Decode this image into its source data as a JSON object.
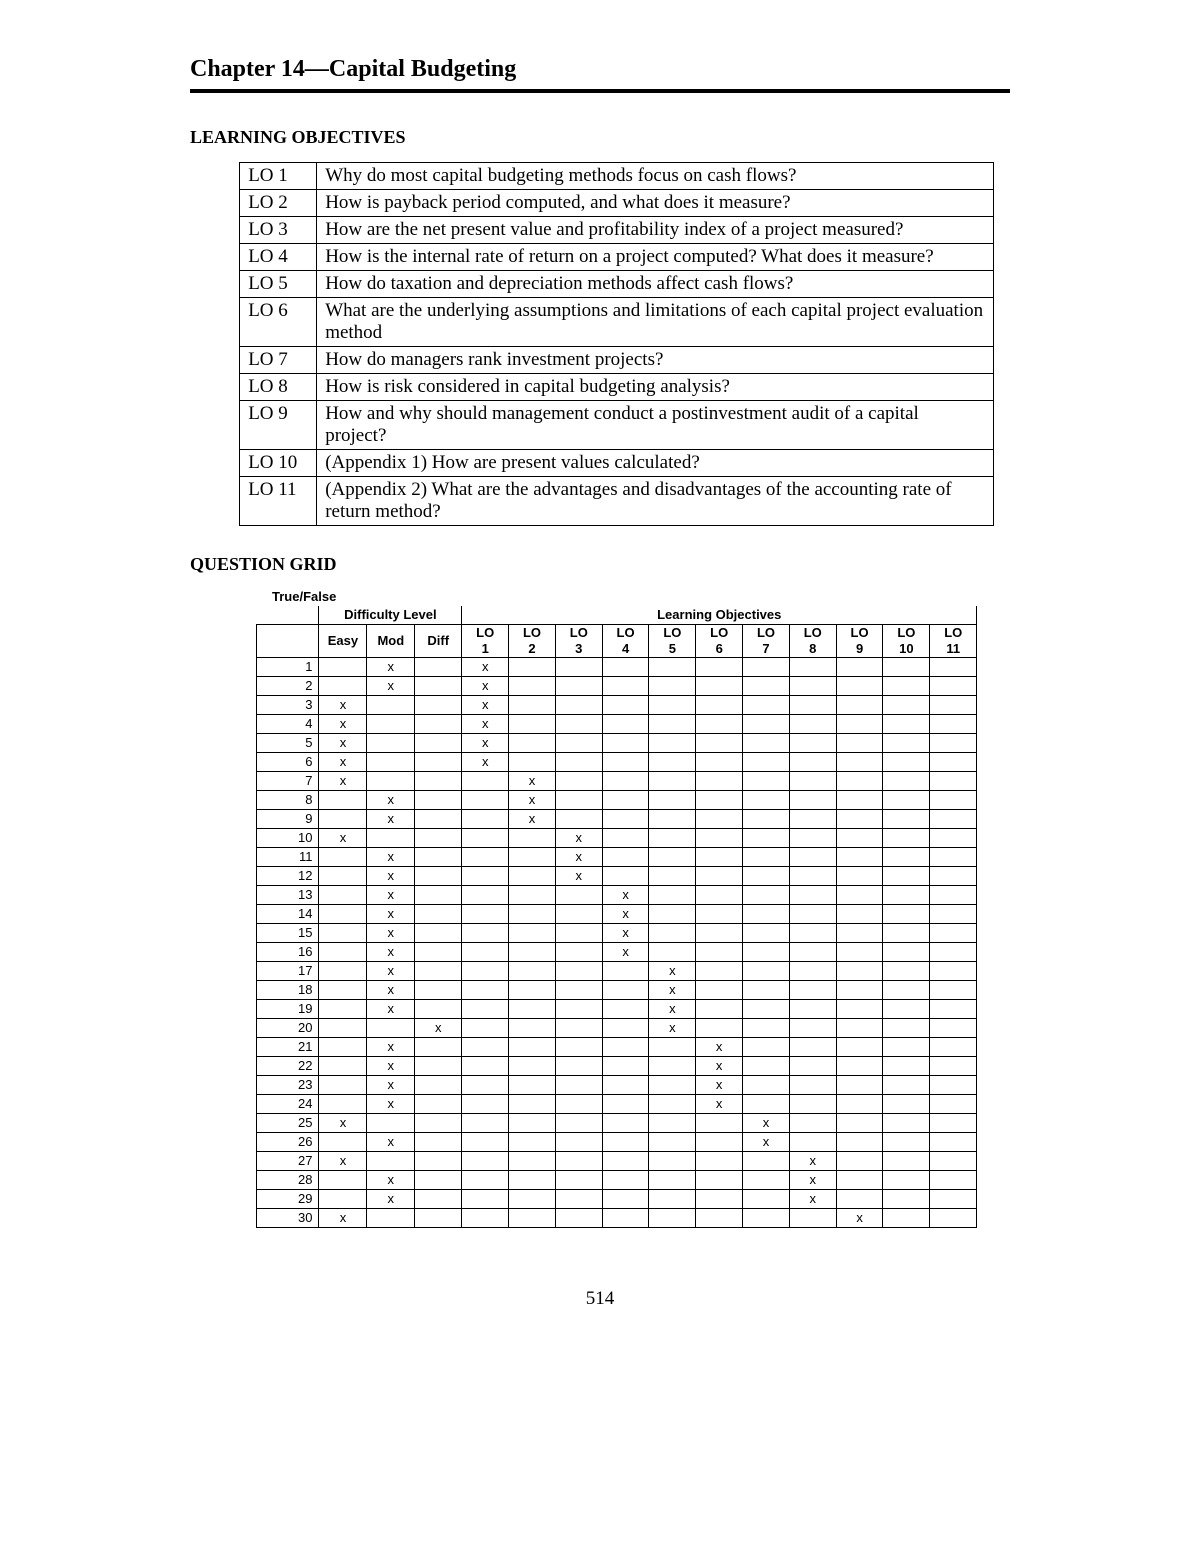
{
  "chapter_title": "Chapter 14—Capital Budgeting",
  "sections": {
    "learning_objectives_heading": "LEARNING OBJECTIVES",
    "question_grid_heading": "QUESTION GRID"
  },
  "learning_objectives": [
    {
      "code": "LO  1",
      "text": "Why do most capital budgeting methods focus on cash flows?"
    },
    {
      "code": "LO  2",
      "text": "How is payback period computed, and what does it measure?"
    },
    {
      "code": "LO  3",
      "text": "How are the net present value and profitability index of a project measured?"
    },
    {
      "code": "LO  4",
      "text": "How is the internal rate of return on a project computed? What does it measure?"
    },
    {
      "code": "LO  5",
      "text": "How do taxation and depreciation methods affect cash flows?"
    },
    {
      "code": "LO  6",
      "text": "What are the underlying assumptions and limitations of each capital project evaluation method"
    },
    {
      "code": "LO  7",
      "text": "How do managers rank investment projects?"
    },
    {
      "code": "LO  8",
      "text": "How is risk considered in capital budgeting analysis?"
    },
    {
      "code": "LO  9",
      "text": "How and why should management conduct a postinvestment audit of a capital project?"
    },
    {
      "code": "LO 10",
      "text": "(Appendix 1) How are present values calculated?"
    },
    {
      "code": "LO 11",
      "text": "(Appendix 2) What are the advantages and disadvantages of the accounting rate of return method?"
    }
  ],
  "question_grid": {
    "label": "True/False",
    "group_headers": {
      "difficulty": "Difficulty Level",
      "objectives": "Learning Objectives"
    },
    "difficulty_cols": [
      "Easy",
      "Mod",
      "Diff"
    ],
    "lo_cols": [
      "LO 1",
      "LO 2",
      "LO 3",
      "LO 4",
      "LO 5",
      "LO 6",
      "LO 7",
      "LO 8",
      "LO 9",
      "LO 10",
      "LO 11"
    ],
    "mark": "x",
    "rows": [
      {
        "n": 1,
        "easy": "",
        "mod": "x",
        "diff": "",
        "lo": [
          "x",
          "",
          "",
          "",
          "",
          "",
          "",
          "",
          "",
          "",
          ""
        ]
      },
      {
        "n": 2,
        "easy": "",
        "mod": "x",
        "diff": "",
        "lo": [
          "x",
          "",
          "",
          "",
          "",
          "",
          "",
          "",
          "",
          "",
          ""
        ]
      },
      {
        "n": 3,
        "easy": "x",
        "mod": "",
        "diff": "",
        "lo": [
          "x",
          "",
          "",
          "",
          "",
          "",
          "",
          "",
          "",
          "",
          ""
        ]
      },
      {
        "n": 4,
        "easy": "x",
        "mod": "",
        "diff": "",
        "lo": [
          "x",
          "",
          "",
          "",
          "",
          "",
          "",
          "",
          "",
          "",
          ""
        ]
      },
      {
        "n": 5,
        "easy": "x",
        "mod": "",
        "diff": "",
        "lo": [
          "x",
          "",
          "",
          "",
          "",
          "",
          "",
          "",
          "",
          "",
          ""
        ]
      },
      {
        "n": 6,
        "easy": "x",
        "mod": "",
        "diff": "",
        "lo": [
          "x",
          "",
          "",
          "",
          "",
          "",
          "",
          "",
          "",
          "",
          ""
        ]
      },
      {
        "n": 7,
        "easy": "x",
        "mod": "",
        "diff": "",
        "lo": [
          "",
          "x",
          "",
          "",
          "",
          "",
          "",
          "",
          "",
          "",
          ""
        ]
      },
      {
        "n": 8,
        "easy": "",
        "mod": "x",
        "diff": "",
        "lo": [
          "",
          "x",
          "",
          "",
          "",
          "",
          "",
          "",
          "",
          "",
          ""
        ]
      },
      {
        "n": 9,
        "easy": "",
        "mod": "x",
        "diff": "",
        "lo": [
          "",
          "x",
          "",
          "",
          "",
          "",
          "",
          "",
          "",
          "",
          ""
        ]
      },
      {
        "n": 10,
        "easy": "x",
        "mod": "",
        "diff": "",
        "lo": [
          "",
          "",
          "x",
          "",
          "",
          "",
          "",
          "",
          "",
          "",
          ""
        ]
      },
      {
        "n": 11,
        "easy": "",
        "mod": "x",
        "diff": "",
        "lo": [
          "",
          "",
          "x",
          "",
          "",
          "",
          "",
          "",
          "",
          "",
          ""
        ]
      },
      {
        "n": 12,
        "easy": "",
        "mod": "x",
        "diff": "",
        "lo": [
          "",
          "",
          "x",
          "",
          "",
          "",
          "",
          "",
          "",
          "",
          ""
        ]
      },
      {
        "n": 13,
        "easy": "",
        "mod": "x",
        "diff": "",
        "lo": [
          "",
          "",
          "",
          "x",
          "",
          "",
          "",
          "",
          "",
          "",
          ""
        ]
      },
      {
        "n": 14,
        "easy": "",
        "mod": "x",
        "diff": "",
        "lo": [
          "",
          "",
          "",
          "x",
          "",
          "",
          "",
          "",
          "",
          "",
          ""
        ]
      },
      {
        "n": 15,
        "easy": "",
        "mod": "x",
        "diff": "",
        "lo": [
          "",
          "",
          "",
          "x",
          "",
          "",
          "",
          "",
          "",
          "",
          ""
        ]
      },
      {
        "n": 16,
        "easy": "",
        "mod": "x",
        "diff": "",
        "lo": [
          "",
          "",
          "",
          "x",
          "",
          "",
          "",
          "",
          "",
          "",
          ""
        ]
      },
      {
        "n": 17,
        "easy": "",
        "mod": "x",
        "diff": "",
        "lo": [
          "",
          "",
          "",
          "",
          "x",
          "",
          "",
          "",
          "",
          "",
          ""
        ]
      },
      {
        "n": 18,
        "easy": "",
        "mod": "x",
        "diff": "",
        "lo": [
          "",
          "",
          "",
          "",
          "x",
          "",
          "",
          "",
          "",
          "",
          ""
        ]
      },
      {
        "n": 19,
        "easy": "",
        "mod": "x",
        "diff": "",
        "lo": [
          "",
          "",
          "",
          "",
          "x",
          "",
          "",
          "",
          "",
          "",
          ""
        ]
      },
      {
        "n": 20,
        "easy": "",
        "mod": "",
        "diff": "x",
        "lo": [
          "",
          "",
          "",
          "",
          "x",
          "",
          "",
          "",
          "",
          "",
          ""
        ]
      },
      {
        "n": 21,
        "easy": "",
        "mod": "x",
        "diff": "",
        "lo": [
          "",
          "",
          "",
          "",
          "",
          "x",
          "",
          "",
          "",
          "",
          ""
        ]
      },
      {
        "n": 22,
        "easy": "",
        "mod": "x",
        "diff": "",
        "lo": [
          "",
          "",
          "",
          "",
          "",
          "x",
          "",
          "",
          "",
          "",
          ""
        ]
      },
      {
        "n": 23,
        "easy": "",
        "mod": "x",
        "diff": "",
        "lo": [
          "",
          "",
          "",
          "",
          "",
          "x",
          "",
          "",
          "",
          "",
          ""
        ]
      },
      {
        "n": 24,
        "easy": "",
        "mod": "x",
        "diff": "",
        "lo": [
          "",
          "",
          "",
          "",
          "",
          "x",
          "",
          "",
          "",
          "",
          ""
        ]
      },
      {
        "n": 25,
        "easy": "x",
        "mod": "",
        "diff": "",
        "lo": [
          "",
          "",
          "",
          "",
          "",
          "",
          "x",
          "",
          "",
          "",
          ""
        ]
      },
      {
        "n": 26,
        "easy": "",
        "mod": "x",
        "diff": "",
        "lo": [
          "",
          "",
          "",
          "",
          "",
          "",
          "x",
          "",
          "",
          "",
          ""
        ]
      },
      {
        "n": 27,
        "easy": "x",
        "mod": "",
        "diff": "",
        "lo": [
          "",
          "",
          "",
          "",
          "",
          "",
          "",
          "x",
          "",
          "",
          ""
        ]
      },
      {
        "n": 28,
        "easy": "",
        "mod": "x",
        "diff": "",
        "lo": [
          "",
          "",
          "",
          "",
          "",
          "",
          "",
          "x",
          "",
          "",
          ""
        ]
      },
      {
        "n": 29,
        "easy": "",
        "mod": "x",
        "diff": "",
        "lo": [
          "",
          "",
          "",
          "",
          "",
          "",
          "",
          "x",
          "",
          "",
          ""
        ]
      },
      {
        "n": 30,
        "easy": "x",
        "mod": "",
        "diff": "",
        "lo": [
          "",
          "",
          "",
          "",
          "",
          "",
          "",
          "",
          "x",
          "",
          ""
        ]
      }
    ]
  },
  "page_number": "514",
  "colors": {
    "text": "#000000",
    "background": "#ffffff",
    "rule": "#000000",
    "border": "#000000"
  }
}
